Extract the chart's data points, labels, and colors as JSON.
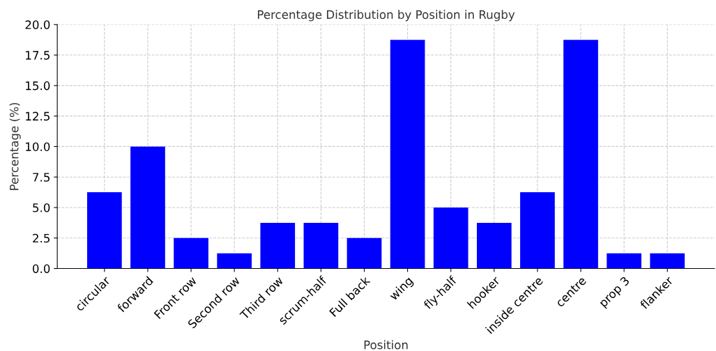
{
  "chart_data": {
    "type": "bar",
    "title": "Percentage Distribution by Position in Rugby",
    "xlabel": "Position",
    "ylabel": "Percentage (%)",
    "categories": [
      "circular",
      "forward",
      "Front row",
      "Second row",
      "Third row",
      "scrum-half",
      "Full back",
      "wing",
      "fly-half",
      "hooker",
      "inside centre",
      "centre",
      "prop 3",
      "flanker"
    ],
    "values": [
      6.25,
      10,
      2.5,
      1.25,
      3.75,
      3.75,
      2.5,
      18.75,
      5,
      3.75,
      6.25,
      18.75,
      1.25,
      1.25
    ],
    "color": "#0000ff",
    "ylim": [
      0,
      20
    ],
    "yticks": [
      {
        "value": 0,
        "label": "0.0"
      },
      {
        "value": 2.5,
        "label": "2.5"
      },
      {
        "value": 5,
        "label": "5.0"
      },
      {
        "value": 7.5,
        "label": "7.5"
      },
      {
        "value": 10,
        "label": "10.0"
      },
      {
        "value": 12.5,
        "label": "12.5"
      },
      {
        "value": 15,
        "label": "15.0"
      },
      {
        "value": 17.5,
        "label": "17.5"
      },
      {
        "value": 20,
        "label": "20.0"
      }
    ],
    "grid": true
  }
}
